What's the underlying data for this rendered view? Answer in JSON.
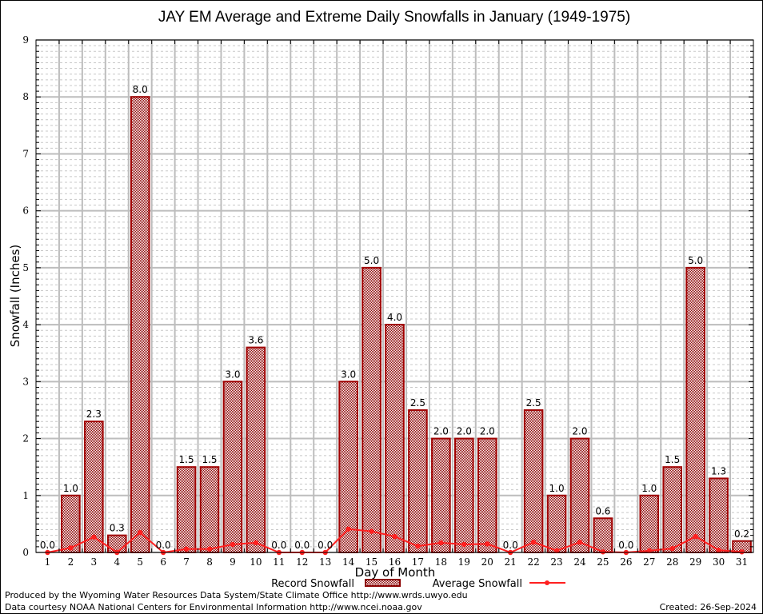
{
  "chart_data": {
    "type": "bar",
    "title": "JAY EM Average and Extreme Daily Snowfalls in January (1949-1975)",
    "xlabel": "Day of Month",
    "ylabel": "Snowfall (Inches)",
    "ylim": [
      0,
      9
    ],
    "yticks": [
      "0",
      "1",
      "2",
      "3",
      "4",
      "5",
      "6",
      "7",
      "8",
      "9"
    ],
    "categories": [
      "1",
      "2",
      "3",
      "4",
      "5",
      "6",
      "7",
      "8",
      "9",
      "10",
      "11",
      "12",
      "13",
      "14",
      "15",
      "16",
      "17",
      "18",
      "19",
      "20",
      "21",
      "22",
      "23",
      "24",
      "25",
      "26",
      "27",
      "28",
      "29",
      "30",
      "31"
    ],
    "grid": true,
    "series": [
      {
        "name": "Record Snowfall",
        "type": "bar",
        "color": "#a00000",
        "values": [
          0.0,
          1.0,
          2.3,
          0.3,
          8.0,
          0.0,
          1.5,
          1.5,
          3.0,
          3.6,
          0.0,
          0.0,
          0.0,
          3.0,
          5.0,
          4.0,
          2.5,
          2.0,
          2.0,
          2.0,
          0.0,
          2.5,
          1.0,
          2.0,
          0.6,
          0.0,
          1.0,
          1.5,
          5.0,
          1.3,
          0.2
        ],
        "labels": [
          "0.0",
          "1.0",
          "2.3",
          "0.3",
          "8.0",
          "0.0",
          "1.5",
          "1.5",
          "3.0",
          "3.6",
          "0.0",
          "0.0",
          "0.0",
          "3.0",
          "5.0",
          "4.0",
          "2.5",
          "2.0",
          "2.0",
          "2.0",
          "0.0",
          "2.5",
          "1.0",
          "2.0",
          "0.6",
          "0.0",
          "1.0",
          "1.5",
          "5.0",
          "1.3",
          "0.2"
        ]
      },
      {
        "name": "Average Snowfall",
        "type": "line",
        "color": "#ff2020",
        "values": [
          0.0,
          0.08,
          0.27,
          0.0,
          0.35,
          0.0,
          0.06,
          0.06,
          0.14,
          0.17,
          0.0,
          0.0,
          0.0,
          0.41,
          0.37,
          0.28,
          0.11,
          0.17,
          0.14,
          0.15,
          0.0,
          0.18,
          0.03,
          0.18,
          0.01,
          0.0,
          0.03,
          0.07,
          0.28,
          0.04,
          0.01
        ]
      }
    ],
    "legend": "bottom-center"
  },
  "footer": {
    "line1": "Produced by the Wyoming Water Resources Data System/State Climate Office http://www.wrds.uwyo.edu",
    "line2": "Data courtesy NOAA National Centers for Environmental Information http://www.ncei.noaa.gov",
    "created": "Created:  26-Sep-2024"
  }
}
